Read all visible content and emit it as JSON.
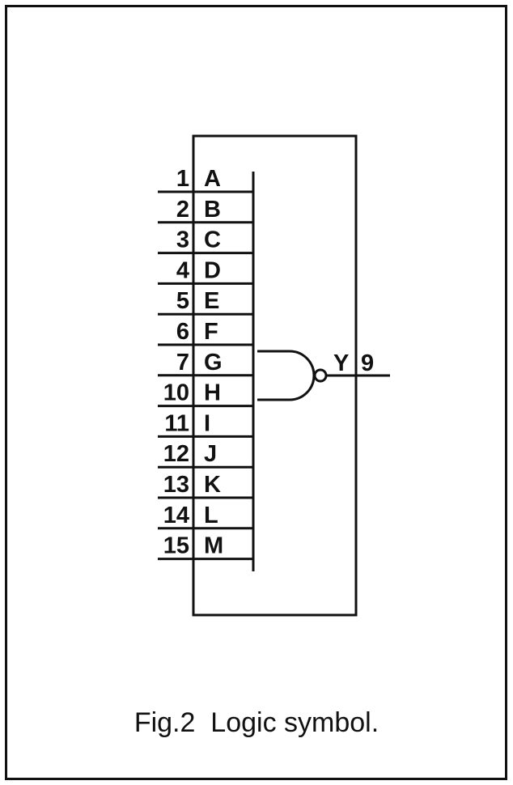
{
  "caption": "Fig.2  Logic symbol.",
  "inputs": [
    {
      "pin": "1",
      "signal": "A"
    },
    {
      "pin": "2",
      "signal": "B"
    },
    {
      "pin": "3",
      "signal": "C"
    },
    {
      "pin": "4",
      "signal": "D"
    },
    {
      "pin": "5",
      "signal": "E"
    },
    {
      "pin": "6",
      "signal": "F"
    },
    {
      "pin": "7",
      "signal": "G"
    },
    {
      "pin": "10",
      "signal": "H"
    },
    {
      "pin": "11",
      "signal": "I"
    },
    {
      "pin": "12",
      "signal": "J"
    },
    {
      "pin": "13",
      "signal": "K"
    },
    {
      "pin": "14",
      "signal": "L"
    },
    {
      "pin": "15",
      "signal": "M"
    }
  ],
  "output": {
    "signal": "Y",
    "pin": "9"
  },
  "colors": {
    "ink": "#111111",
    "background": "#ffffff"
  }
}
